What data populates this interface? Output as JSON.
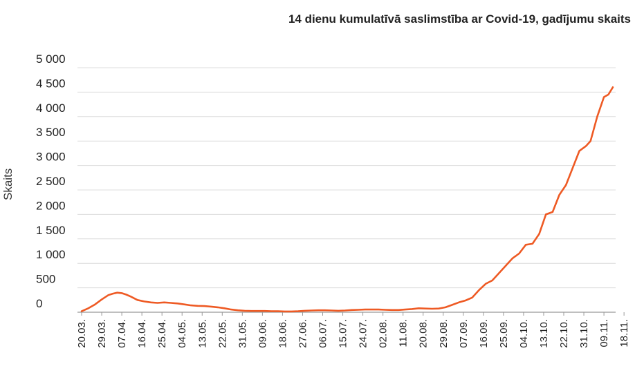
{
  "chart_data": {
    "type": "line",
    "title": "14 dienu kumulatīvā saslimstība ar Covid-19, gadījumu skaits",
    "ylabel": "Skaits",
    "xlabel": "",
    "ylim": [
      0,
      5000
    ],
    "y_ticks": [
      "0",
      "500",
      "1 000",
      "1 500",
      "2 000",
      "2 500",
      "3 000",
      "3 500",
      "4 000",
      "4 500",
      "5 000"
    ],
    "x_ticks": [
      "20.03.",
      "29.03.",
      "07.04.",
      "16.04.",
      "25.04.",
      "04.05.",
      "13.05.",
      "22.05.",
      "31.05.",
      "09.06.",
      "18.06.",
      "27.06.",
      "06.07.",
      "15.07.",
      "24.07.",
      "02.08.",
      "11.08.",
      "20.08.",
      "29.08.",
      "07.09.",
      "16.09.",
      "25.09.",
      "04.10.",
      "13.10.",
      "22.10.",
      "31.10.",
      "09.11.",
      "18.11."
    ],
    "grid": true,
    "color": "#ee5a24",
    "series": [
      {
        "points": [
          [
            0,
            20
          ],
          [
            3,
            80
          ],
          [
            6,
            160
          ],
          [
            9,
            260
          ],
          [
            12,
            350
          ],
          [
            14,
            380
          ],
          [
            16,
            400
          ],
          [
            18,
            390
          ],
          [
            20,
            360
          ],
          [
            22,
            320
          ],
          [
            25,
            250
          ],
          [
            28,
            220
          ],
          [
            31,
            200
          ],
          [
            34,
            190
          ],
          [
            37,
            200
          ],
          [
            40,
            190
          ],
          [
            43,
            180
          ],
          [
            46,
            160
          ],
          [
            49,
            140
          ],
          [
            52,
            130
          ],
          [
            55,
            125
          ],
          [
            58,
            115
          ],
          [
            61,
            100
          ],
          [
            64,
            80
          ],
          [
            67,
            55
          ],
          [
            70,
            40
          ],
          [
            73,
            30
          ],
          [
            76,
            25
          ],
          [
            79,
            25
          ],
          [
            82,
            25
          ],
          [
            85,
            20
          ],
          [
            88,
            20
          ],
          [
            91,
            15
          ],
          [
            94,
            15
          ],
          [
            97,
            20
          ],
          [
            100,
            30
          ],
          [
            103,
            35
          ],
          [
            106,
            40
          ],
          [
            109,
            40
          ],
          [
            112,
            35
          ],
          [
            115,
            30
          ],
          [
            118,
            35
          ],
          [
            121,
            45
          ],
          [
            124,
            50
          ],
          [
            127,
            55
          ],
          [
            130,
            55
          ],
          [
            133,
            55
          ],
          [
            136,
            50
          ],
          [
            139,
            45
          ],
          [
            142,
            45
          ],
          [
            145,
            55
          ],
          [
            148,
            65
          ],
          [
            151,
            80
          ],
          [
            154,
            75
          ],
          [
            157,
            70
          ],
          [
            160,
            75
          ],
          [
            163,
            100
          ],
          [
            166,
            150
          ],
          [
            169,
            200
          ],
          [
            172,
            240
          ],
          [
            175,
            300
          ],
          [
            178,
            450
          ],
          [
            181,
            580
          ],
          [
            184,
            650
          ],
          [
            187,
            800
          ],
          [
            190,
            950
          ],
          [
            193,
            1100
          ],
          [
            196,
            1200
          ],
          [
            199,
            1380
          ],
          [
            202,
            1400
          ],
          [
            205,
            1600
          ],
          [
            208,
            2000
          ],
          [
            211,
            2050
          ],
          [
            214,
            2400
          ],
          [
            217,
            2600
          ],
          [
            220,
            2950
          ],
          [
            223,
            3300
          ],
          [
            226,
            3400
          ],
          [
            228,
            3500
          ],
          [
            231,
            4000
          ],
          [
            234,
            4400
          ],
          [
            236,
            4450
          ],
          [
            238,
            4600
          ]
        ]
      }
    ]
  }
}
